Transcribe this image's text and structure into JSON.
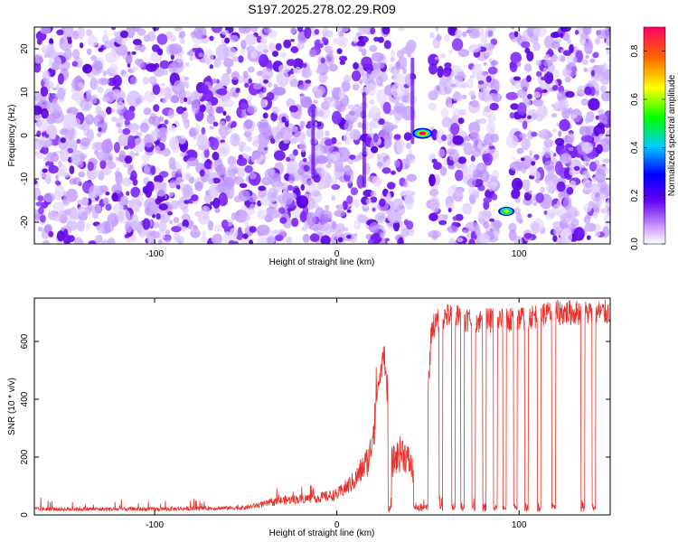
{
  "title": "S197.2025.278.02.29.R09",
  "chart_data": [
    {
      "type": "heatmap",
      "xlabel": "Height of straight line (km)",
      "ylabel": "Frequency (Hz)",
      "xlim": [
        -166,
        150
      ],
      "ylim": [
        -25,
        25
      ],
      "xticks": [
        "-100",
        "0",
        "100"
      ],
      "yticks": [
        "-20",
        "-10",
        "0",
        "10",
        "20"
      ],
      "colorbar": {
        "label": "Normalized spectral amplitude",
        "range": [
          0.0,
          0.9
        ],
        "ticks": [
          "0.0",
          "0.2",
          "0.4",
          "0.6",
          "0.8"
        ],
        "colors": [
          "#ffffff",
          "#cc99ff",
          "#6600ee",
          "#0000ff",
          "#00ccff",
          "#00ff00",
          "#ffff00",
          "#ff6600",
          "#ff0066"
        ]
      },
      "noise_band_km": [
        -166,
        150
      ],
      "blank_gaps_km": [
        [
          42,
          52
        ],
        [
          88,
          96
        ]
      ],
      "peaks": [
        {
          "x": 47,
          "y": 0.5,
          "amplitude": 0.9
        },
        {
          "x": 93,
          "y": -17.5,
          "amplitude": 0.55
        }
      ]
    },
    {
      "type": "line",
      "xlabel": "Height of straight line (km)",
      "ylabel": "SNR (10 * v/v)",
      "xlim": [
        -166,
        150
      ],
      "ylim": [
        0,
        750
      ],
      "xticks": [
        "-100",
        "0",
        "100"
      ],
      "yticks": [
        "0",
        "200",
        "400",
        "600"
      ],
      "series": [
        {
          "color": "#e8302a",
          "profile": [
            [
              -166,
              20
            ],
            [
              -100,
              20
            ],
            [
              -50,
              25
            ],
            [
              -30,
              50
            ],
            [
              -10,
              60
            ],
            [
              0,
              70
            ],
            [
              10,
              120
            ],
            [
              18,
              200
            ],
            [
              22,
              420
            ],
            [
              26,
              560
            ],
            [
              30,
              180
            ],
            [
              36,
              220
            ],
            [
              40,
              180
            ],
            [
              47,
              60
            ],
            [
              52,
              650
            ],
            [
              60,
              690
            ],
            [
              80,
              670
            ],
            [
              100,
              680
            ],
            [
              120,
              700
            ],
            [
              150,
              700
            ]
          ],
          "dropouts_km": [
            [
              28,
              30
            ],
            [
              56,
              58
            ],
            [
              63,
              65
            ],
            [
              68,
              70
            ],
            [
              74,
              76
            ],
            [
              80,
              82
            ],
            [
              86,
              88
            ],
            [
              91,
              93
            ],
            [
              97,
              99
            ],
            [
              103,
              105
            ],
            [
              110,
              112
            ],
            [
              118,
              120
            ],
            [
              134,
              136
            ],
            [
              140,
              142
            ]
          ]
        }
      ]
    }
  ]
}
